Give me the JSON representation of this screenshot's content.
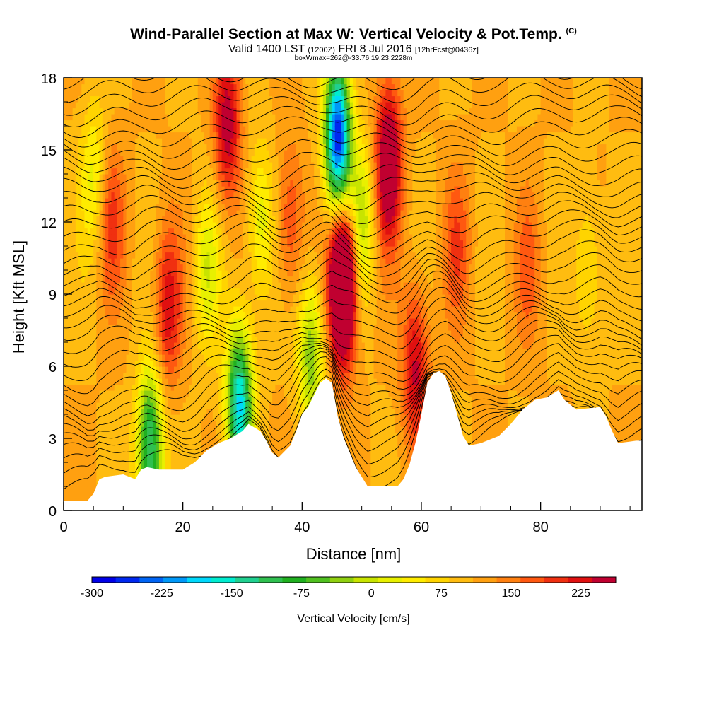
{
  "chart_data": {
    "type": "heatmap",
    "title": "Wind-Parallel Section at Max W: Vertical Velocity & Pot.Temp.",
    "title_tag": "(C)",
    "subtitle_main": "Valid 1400 LST",
    "subtitle_utc": "(1200Z)",
    "subtitle_date": "FRI 8 Jul 2016",
    "subtitle_fcst": "[12hrFcst@0436z]",
    "subtitle2": "boxWmax=262@-33.76,19.23,2228m",
    "xlabel": "Distance [nm]",
    "ylabel": "Height [Kft MSL]",
    "xlim": [
      0,
      97
    ],
    "ylim": [
      0,
      18
    ],
    "xticks": [
      0,
      20,
      40,
      60,
      80
    ],
    "yticks": [
      0,
      3,
      6,
      9,
      12,
      15,
      18
    ],
    "colorbar": {
      "label": "Vertical Velocity [cm/s]",
      "min": -300,
      "max": 262.5,
      "step": 18.75,
      "ticks": [
        -300,
        -225,
        -150,
        -75,
        0,
        75,
        150,
        225
      ],
      "colors": [
        "#0000e8",
        "#0028f0",
        "#0064f4",
        "#0098f8",
        "#00d8fc",
        "#00ecd0",
        "#20d090",
        "#30c050",
        "#20b020",
        "#50c020",
        "#90d010",
        "#c8e400",
        "#e8f000",
        "#ffec00",
        "#ffd400",
        "#ffbc10",
        "#ffa010",
        "#ff8010",
        "#ff5810",
        "#f03010",
        "#e01010",
        "#c00030"
      ]
    },
    "terrain": [
      [
        0,
        0.4
      ],
      [
        4,
        0.4
      ],
      [
        5,
        0.7
      ],
      [
        6,
        1.3
      ],
      [
        7,
        1.4
      ],
      [
        10,
        1.5
      ],
      [
        12,
        1.3
      ],
      [
        13,
        1.7
      ],
      [
        14,
        1.8
      ],
      [
        16,
        1.7
      ],
      [
        20,
        1.7
      ],
      [
        22,
        2.0
      ],
      [
        24,
        2.5
      ],
      [
        26,
        2.8
      ],
      [
        28,
        3.0
      ],
      [
        30,
        3.3
      ],
      [
        31,
        3.6
      ],
      [
        33,
        3.3
      ],
      [
        34,
        2.9
      ],
      [
        35,
        2.4
      ],
      [
        36,
        2.2
      ],
      [
        38,
        2.7
      ],
      [
        39,
        3.3
      ],
      [
        40,
        4.0
      ],
      [
        41,
        4.3
      ],
      [
        42,
        4.8
      ],
      [
        43,
        5.3
      ],
      [
        44,
        5.5
      ],
      [
        45,
        5.3
      ],
      [
        46,
        3.9
      ],
      [
        47,
        3.0
      ],
      [
        48,
        2.4
      ],
      [
        49,
        1.8
      ],
      [
        50,
        1.4
      ],
      [
        51,
        1.0
      ],
      [
        56,
        1.0
      ],
      [
        57,
        1.3
      ],
      [
        58,
        1.9
      ],
      [
        59,
        2.8
      ],
      [
        60,
        4.0
      ],
      [
        61,
        5.3
      ],
      [
        62,
        5.7
      ],
      [
        63,
        5.8
      ],
      [
        64,
        5.6
      ],
      [
        65,
        4.9
      ],
      [
        66,
        4.0
      ],
      [
        67,
        3.1
      ],
      [
        68,
        2.7
      ],
      [
        70,
        2.8
      ],
      [
        73,
        3.1
      ],
      [
        75,
        3.6
      ],
      [
        77,
        4.2
      ],
      [
        79,
        4.6
      ],
      [
        81,
        4.7
      ],
      [
        83,
        5.0
      ],
      [
        84,
        4.6
      ],
      [
        86,
        4.2
      ],
      [
        90,
        4.3
      ],
      [
        91,
        3.9
      ],
      [
        92,
        3.3
      ],
      [
        93,
        2.8
      ],
      [
        96,
        2.9
      ],
      [
        97,
        2.9
      ]
    ],
    "updrafts": [
      {
        "x": 46.8,
        "y": 9.5,
        "peak": 262
      },
      {
        "x": 54.5,
        "y": 14.5,
        "peak": 150
      },
      {
        "x": 27.5,
        "y": 16.0,
        "peak": 110
      },
      {
        "x": 17.5,
        "y": 8.5,
        "peak": 90
      },
      {
        "x": 59.0,
        "y": 6.0,
        "peak": 100
      },
      {
        "x": 8.0,
        "y": 12.0,
        "peak": 60
      },
      {
        "x": 38.0,
        "y": 12.0,
        "peak": 60
      },
      {
        "x": 66.0,
        "y": 11.0,
        "peak": 50
      },
      {
        "x": 78.0,
        "y": 10.0,
        "peak": 40
      }
    ],
    "downdrafts": [
      {
        "x": 46.0,
        "y": 15.5,
        "peak": -280
      },
      {
        "x": 29.5,
        "y": 4.4,
        "peak": -210
      },
      {
        "x": 14.5,
        "y": 2.6,
        "peak": -180
      },
      {
        "x": 41.5,
        "y": 6.5,
        "peak": -110
      },
      {
        "x": 50.0,
        "y": 12.0,
        "peak": -90
      },
      {
        "x": 24.0,
        "y": 10.0,
        "peak": -70
      },
      {
        "x": 33.0,
        "y": 12.0,
        "peak": -70
      },
      {
        "x": 5.0,
        "y": 14.0,
        "peak": -60
      },
      {
        "x": 88.0,
        "y": 10.0,
        "peak": -50
      }
    ],
    "theta_contours": {
      "count": 38,
      "color": "#000000"
    }
  }
}
